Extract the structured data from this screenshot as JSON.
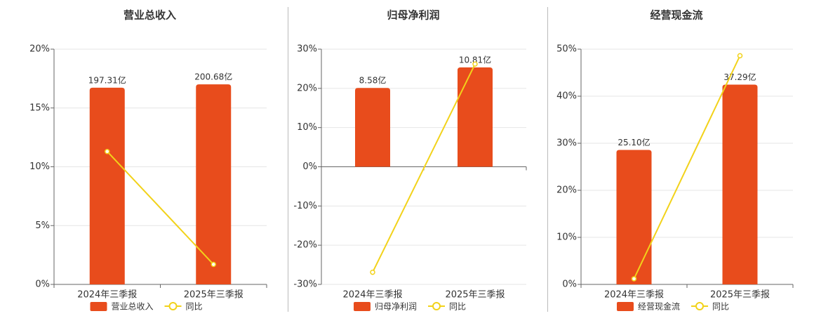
{
  "chart_data": [
    {
      "type": "bar",
      "title": "营业总收入",
      "categories": [
        "2024年三季报",
        "2025年三季报"
      ],
      "series": [
        {
          "name": "营业总收入",
          "type": "bar",
          "axis": "y2",
          "color": "#e84c1c",
          "values": [
            197.31,
            200.68
          ],
          "value_labels": [
            "197.31亿",
            "200.68亿"
          ]
        },
        {
          "name": "同比",
          "type": "line",
          "color": "#f2d21a",
          "values": [
            11.3,
            1.7
          ]
        }
      ],
      "ylim": [
        0,
        20
      ],
      "yticks": [
        {
          "value": 0,
          "label": "0%"
        },
        {
          "value": 5,
          "label": "5%"
        },
        {
          "value": 10,
          "label": "10%"
        },
        {
          "value": 15,
          "label": "15%"
        },
        {
          "value": 20,
          "label": "20%"
        }
      ],
      "y2lim": [
        0,
        236
      ],
      "grid": true
    },
    {
      "type": "bar",
      "title": "归母净利润",
      "categories": [
        "2024年三季报",
        "2025年三季报"
      ],
      "series": [
        {
          "name": "归母净利润",
          "type": "bar",
          "axis": "y2",
          "color": "#e84c1c",
          "values": [
            8.58,
            10.81
          ],
          "value_labels": [
            "8.58亿",
            "10.81亿"
          ]
        },
        {
          "name": "同比",
          "type": "line",
          "color": "#f2d21a",
          "values": [
            -26.9,
            26.2
          ]
        }
      ],
      "ylim": [
        -30,
        30
      ],
      "yticks": [
        {
          "value": -30,
          "label": "-30%"
        },
        {
          "value": -20,
          "label": "-20%"
        },
        {
          "value": -10,
          "label": "-10%"
        },
        {
          "value": 0,
          "label": "0%"
        },
        {
          "value": 10,
          "label": "10%"
        },
        {
          "value": 20,
          "label": "20%"
        },
        {
          "value": 30,
          "label": "30%"
        }
      ],
      "y2lim": [
        -12.8,
        12.8
      ],
      "grid": true
    },
    {
      "type": "bar",
      "title": "经营现金流",
      "categories": [
        "2024年三季报",
        "2025年三季报"
      ],
      "series": [
        {
          "name": "经营现金流",
          "type": "bar",
          "axis": "y2",
          "color": "#e84c1c",
          "values": [
            25.1,
            37.29
          ],
          "value_labels": [
            "25.10亿",
            "37.29亿"
          ]
        },
        {
          "name": "同比",
          "type": "line",
          "color": "#f2d21a",
          "values": [
            1.2,
            48.6
          ]
        }
      ],
      "ylim": [
        0,
        50
      ],
      "yticks": [
        {
          "value": 0,
          "label": "0%"
        },
        {
          "value": 10,
          "label": "10%"
        },
        {
          "value": 20,
          "label": "20%"
        },
        {
          "value": 30,
          "label": "30%"
        },
        {
          "value": 40,
          "label": "40%"
        },
        {
          "value": 50,
          "label": "50%"
        }
      ],
      "y2lim": [
        0,
        43.9
      ],
      "grid": true
    }
  ]
}
